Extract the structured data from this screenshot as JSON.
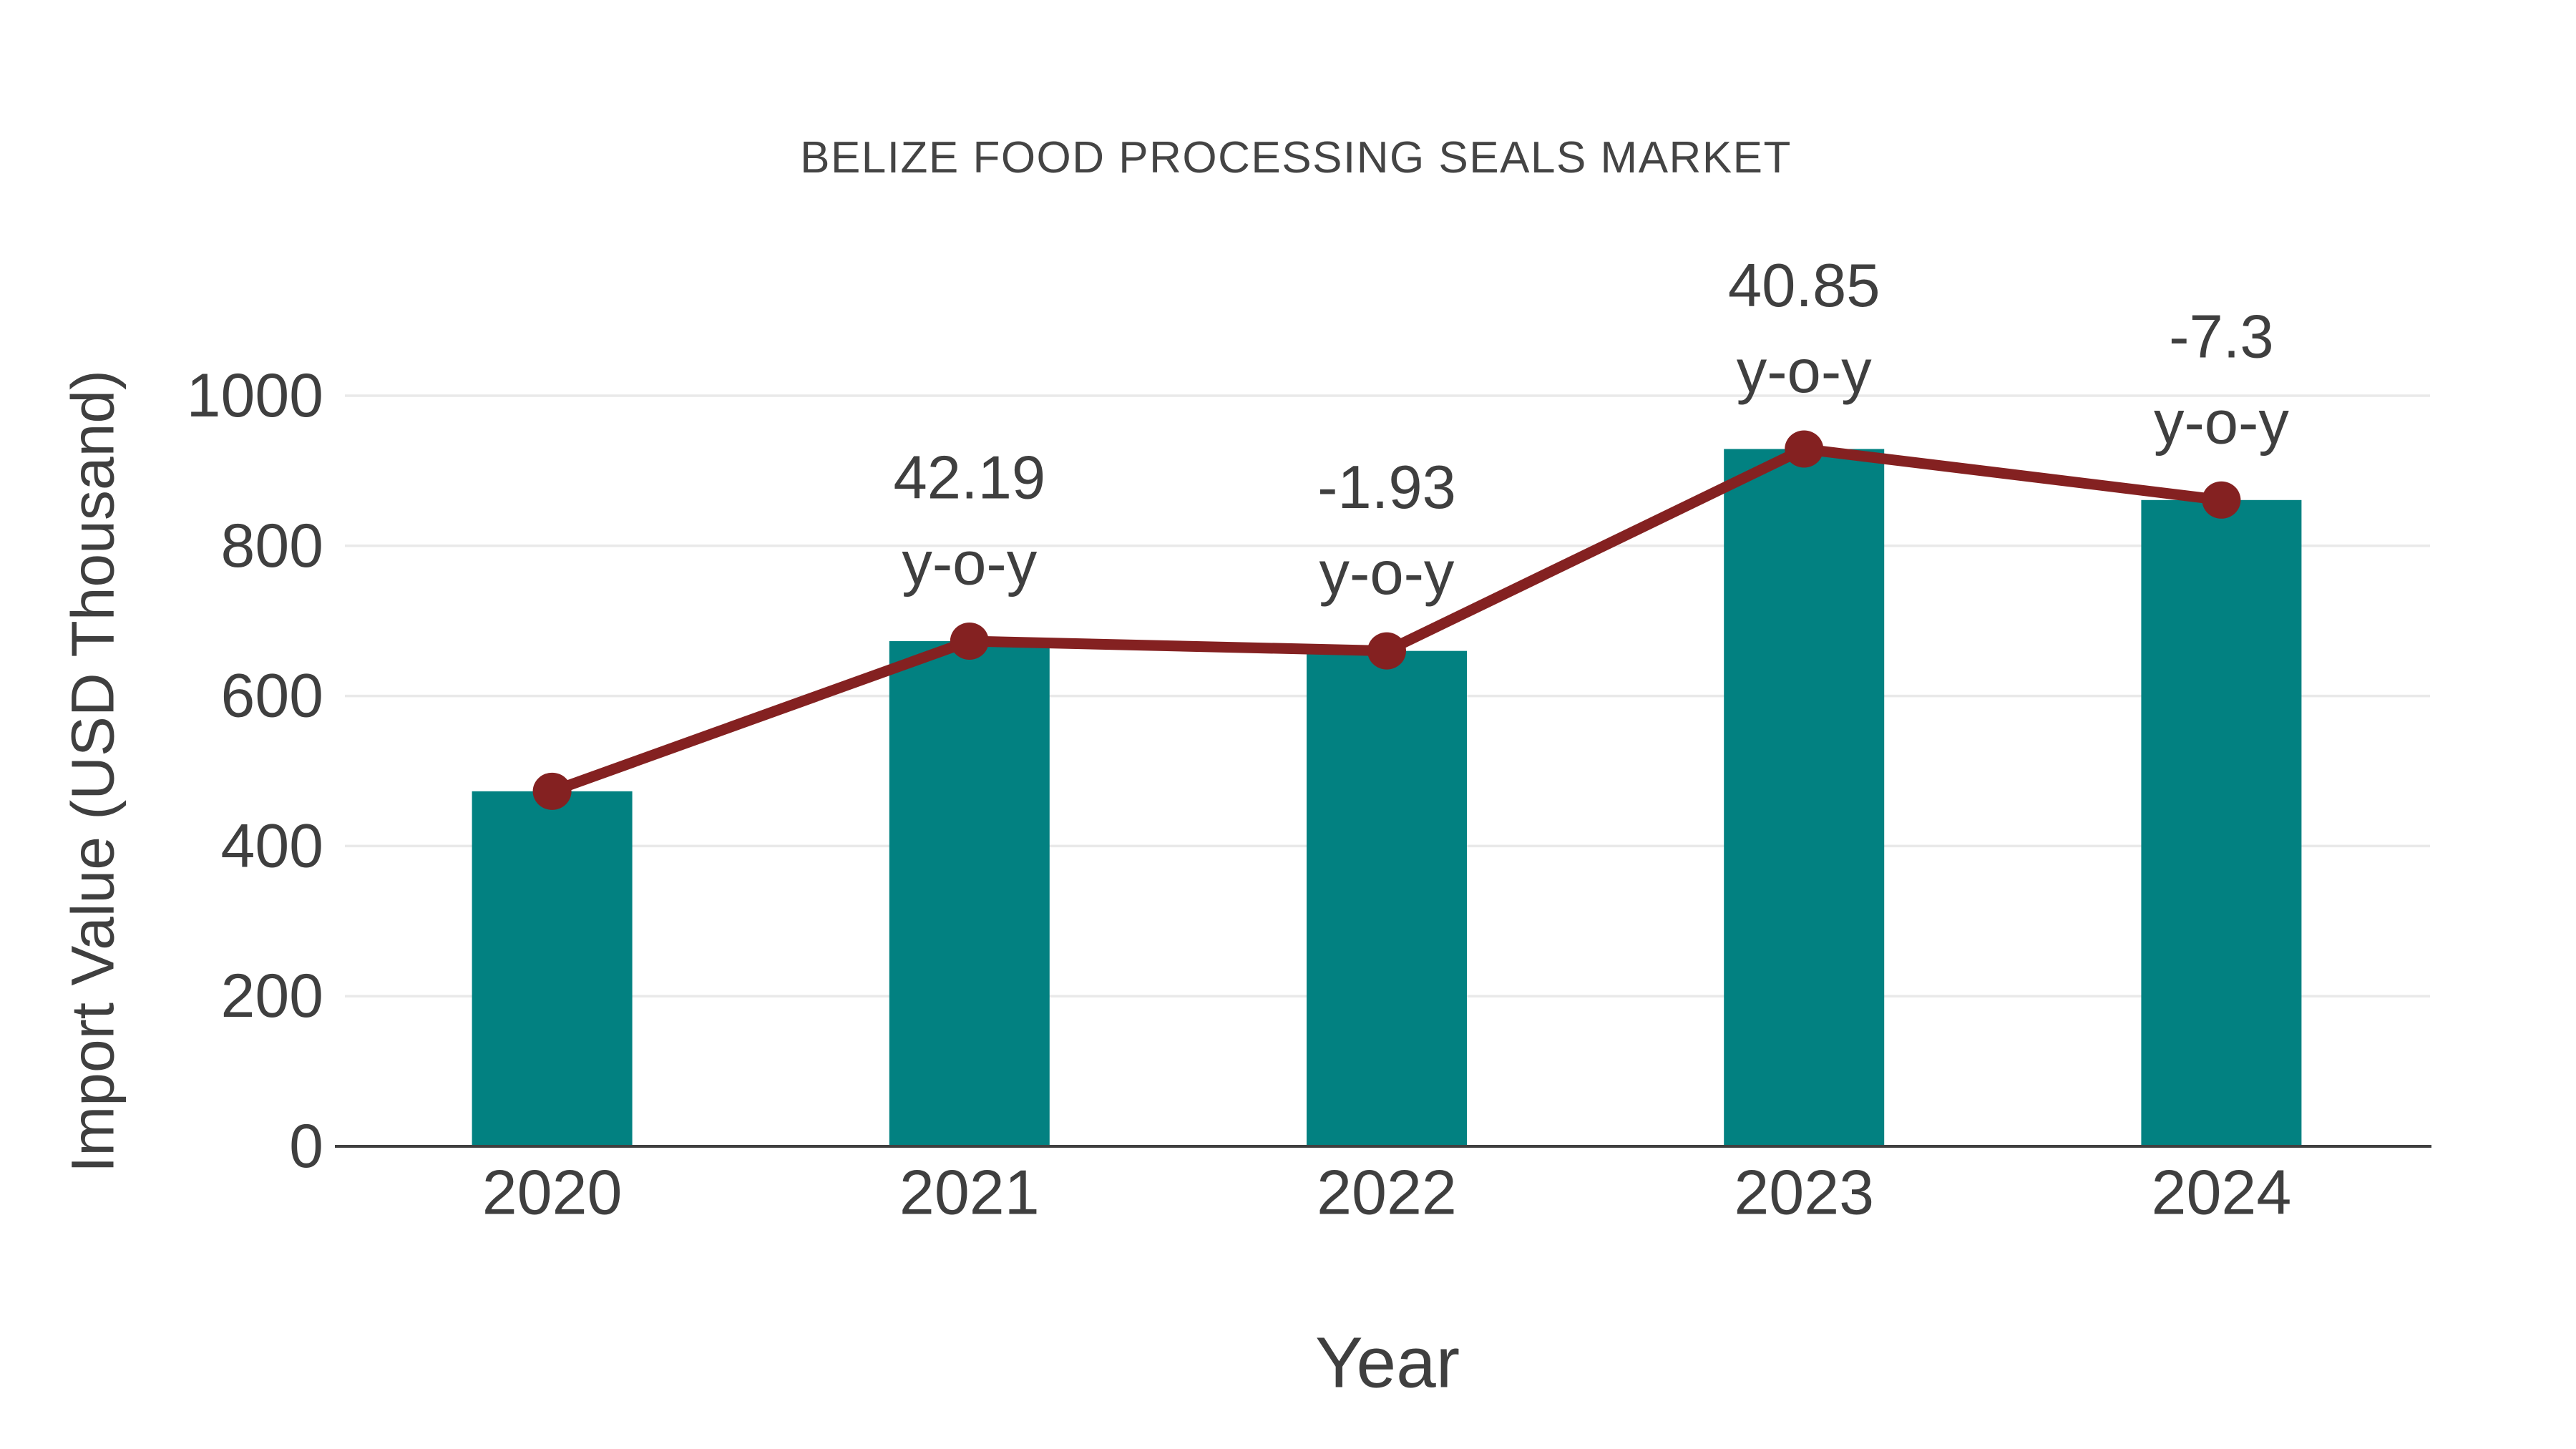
{
  "title": "BELIZE FOOD PROCESSING SEALS MARKET",
  "colors": {
    "bar": "#028181",
    "line": "#842121",
    "text": "#3f3f3f",
    "title_text": "#444444",
    "grid": "#e9e9e9",
    "axis": "#3f3f3f",
    "background": "#ffffff"
  },
  "chart_data": {
    "type": "bar",
    "title": "BELIZE FOOD PROCESSING SEALS MARKET",
    "xlabel": "Year",
    "ylabel": "Import Value (USD Thousand)",
    "categories": [
      "2020",
      "2021",
      "2022",
      "2023",
      "2024"
    ],
    "series": [
      {
        "name": "Import Value (USD Thousand)",
        "type": "bar",
        "color": "#028181",
        "values": [
          473,
          673,
          660,
          929,
          861
        ]
      },
      {
        "name": "y-o-y change (%)",
        "type": "line",
        "color": "#842121",
        "values": [
          null,
          42.19,
          -1.93,
          40.85,
          -7.3
        ]
      }
    ],
    "annotations": [
      {
        "category": "2021",
        "lines": [
          "42.19",
          "y-o-y"
        ]
      },
      {
        "category": "2022",
        "lines": [
          "-1.93",
          "y-o-y"
        ]
      },
      {
        "category": "2023",
        "lines": [
          "40.85",
          "y-o-y"
        ]
      },
      {
        "category": "2024",
        "lines": [
          "-7.3",
          "y-o-y"
        ]
      }
    ],
    "ylim": [
      0,
      1000
    ],
    "yticks": [
      0,
      200,
      400,
      600,
      800,
      1000
    ],
    "grid": true,
    "legend_position": "none"
  }
}
